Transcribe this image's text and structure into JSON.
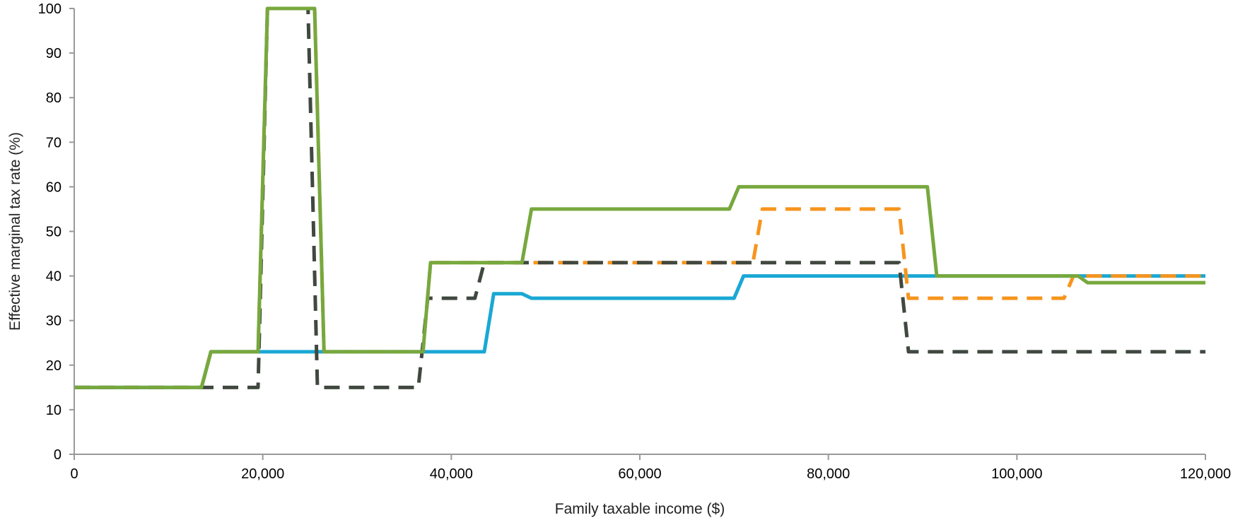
{
  "chart_data": {
    "type": "line",
    "xlabel": "Family taxable income ($)",
    "ylabel": "Effective marginal tax rate (%)",
    "xlim": [
      0,
      120000
    ],
    "ylim": [
      0,
      100
    ],
    "x_ticks": [
      0,
      20000,
      40000,
      60000,
      80000,
      100000,
      120000
    ],
    "x_tick_labels": [
      "0",
      "20,000",
      "40,000",
      "60,000",
      "80,000",
      "100,000",
      "120,000"
    ],
    "y_ticks": [
      0,
      10,
      20,
      30,
      40,
      50,
      60,
      70,
      80,
      90,
      100
    ],
    "y_tick_labels": [
      "0",
      "10",
      "20",
      "30",
      "40",
      "50",
      "60",
      "70",
      "80",
      "90",
      "100"
    ],
    "grid": false,
    "legend": "none",
    "series": [
      {
        "color": "#1aa8d4",
        "dash": "solid",
        "points": [
          [
            0,
            15
          ],
          [
            13500,
            15
          ],
          [
            14500,
            23
          ],
          [
            43500,
            23
          ],
          [
            44500,
            36
          ],
          [
            47500,
            36
          ],
          [
            48500,
            35
          ],
          [
            70000,
            35
          ],
          [
            71000,
            40
          ],
          [
            120000,
            40
          ]
        ]
      },
      {
        "color": "#f7941d",
        "dash": "dashed",
        "points": [
          [
            0,
            15
          ],
          [
            13500,
            15
          ],
          [
            14500,
            23
          ],
          [
            19500,
            23
          ],
          [
            20500,
            100
          ],
          [
            25500,
            100
          ],
          [
            26500,
            23
          ],
          [
            37000,
            23
          ],
          [
            37800,
            43
          ],
          [
            72000,
            43
          ],
          [
            73000,
            55
          ],
          [
            87500,
            55
          ],
          [
            88500,
            35
          ],
          [
            105000,
            35
          ],
          [
            106000,
            40
          ],
          [
            120000,
            40
          ]
        ]
      },
      {
        "color": "#404840",
        "dash": "dashed",
        "points": [
          [
            0,
            15
          ],
          [
            19500,
            15
          ],
          [
            20500,
            100
          ],
          [
            24800,
            100
          ],
          [
            25800,
            15
          ],
          [
            36500,
            15
          ],
          [
            37500,
            35
          ],
          [
            42500,
            35
          ],
          [
            43500,
            43
          ],
          [
            87500,
            43
          ],
          [
            88500,
            23
          ],
          [
            120000,
            23
          ]
        ]
      },
      {
        "color": "#77a83e",
        "dash": "solid",
        "points": [
          [
            0,
            15
          ],
          [
            13500,
            15
          ],
          [
            14500,
            23
          ],
          [
            19500,
            23
          ],
          [
            20500,
            100
          ],
          [
            25500,
            100
          ],
          [
            26500,
            23
          ],
          [
            37000,
            23
          ],
          [
            37800,
            43
          ],
          [
            47500,
            43
          ],
          [
            48500,
            55
          ],
          [
            69500,
            55
          ],
          [
            70500,
            60
          ],
          [
            90500,
            60
          ],
          [
            91500,
            40
          ],
          [
            106500,
            40
          ],
          [
            107500,
            38.5
          ],
          [
            120000,
            38.5
          ]
        ]
      }
    ]
  }
}
